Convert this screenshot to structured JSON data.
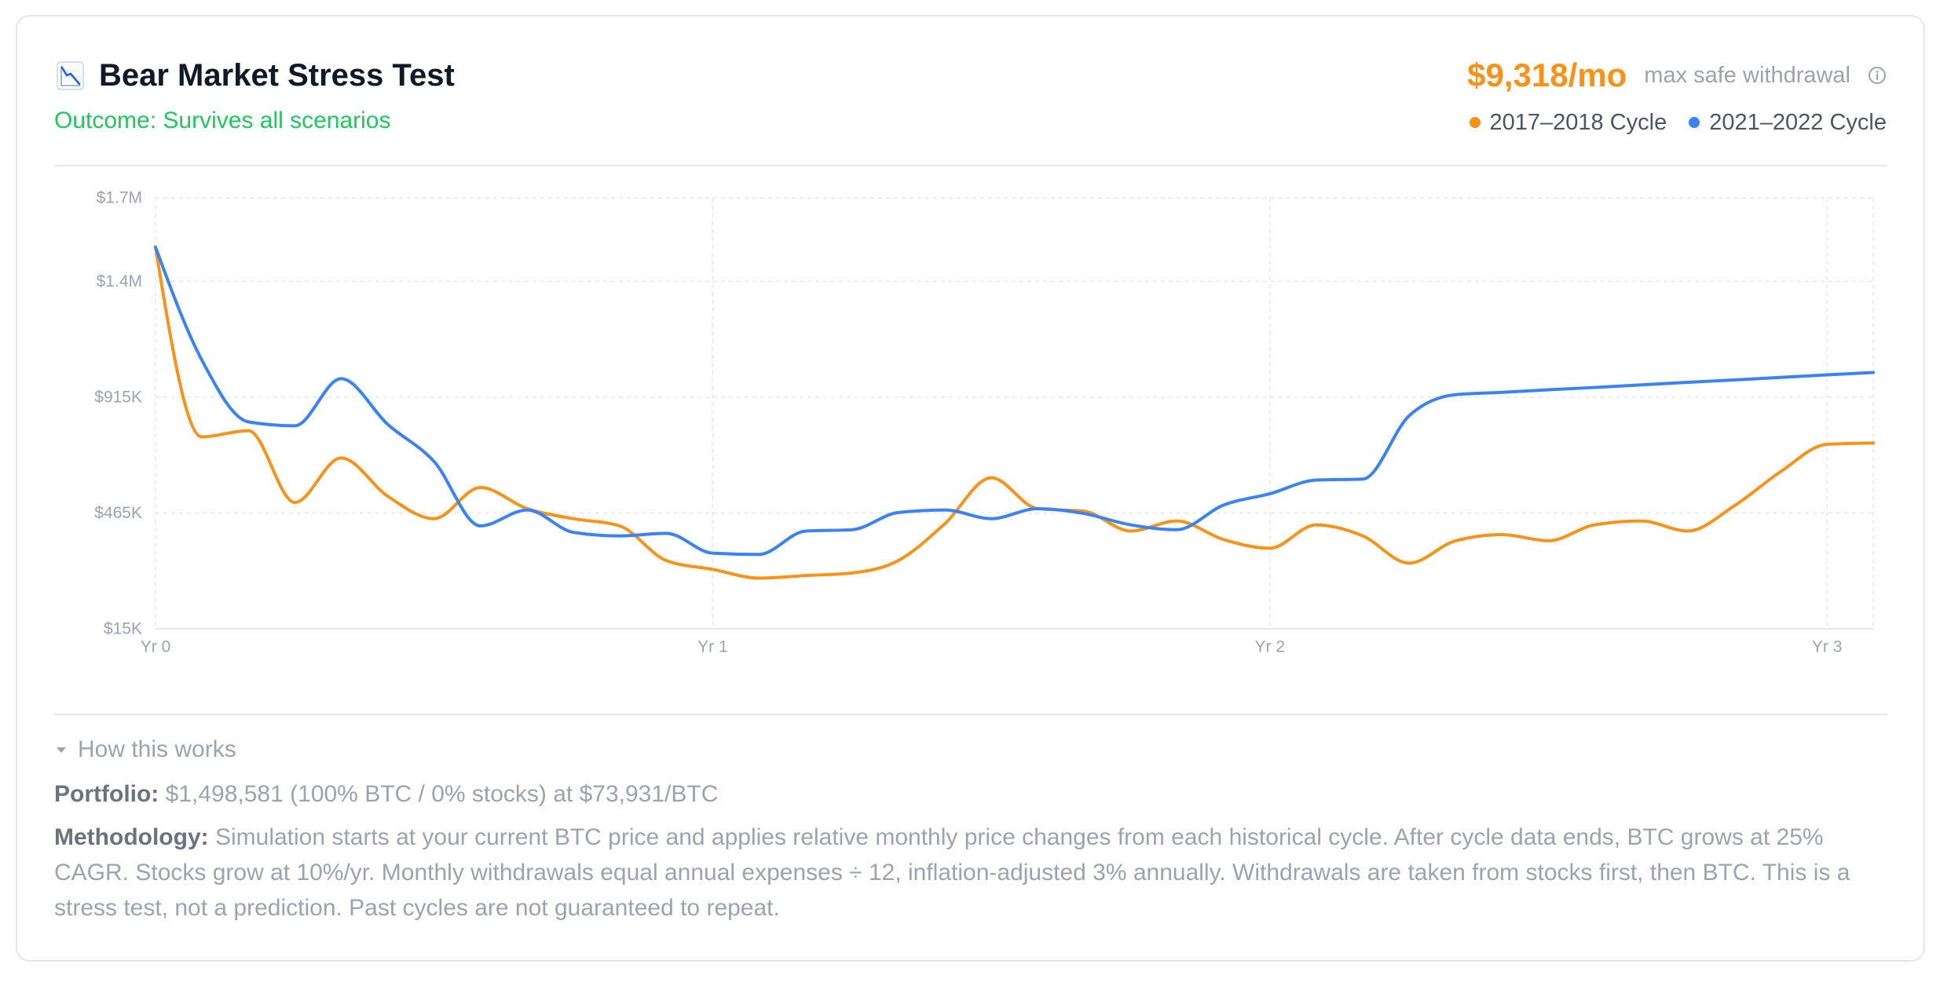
{
  "card": {
    "title": "Bear Market Stress Test",
    "title_icon": "chart-decreasing-icon",
    "outcome": "Outcome: Survives all scenarios"
  },
  "summary": {
    "value": "$9,318/mo",
    "label": "max safe withdrawal",
    "info_icon": "info-icon"
  },
  "colors": {
    "accent": "#f7931a",
    "positive": "#22c55e",
    "grid": "#e5e7eb"
  },
  "details": {
    "toggle_icon": "caret-down-icon",
    "toggle_label": "How this works",
    "portfolio_label": "Portfolio:",
    "portfolio_text": "$1,498,581 (100% BTC / 0% stocks) at $73,931/BTC",
    "methodology_label": "Methodology:",
    "methodology_text": "Simulation starts at your current BTC price and applies relative monthly price changes from each historical cycle. After cycle data ends, BTC grows at 25% CAGR. Stocks grow at 10%/yr. Monthly withdrawals equal annual expenses ÷ 12, inflation-adjusted 3% annually. Withdrawals are taken from stocks first, then BTC. This is a stress test, not a prediction. Past cycles are not guaranteed to repeat."
  },
  "chart_data": {
    "type": "line",
    "grid": true,
    "legend_position": "top-right",
    "x": [
      0,
      0.083,
      0.167,
      0.25,
      0.333,
      0.417,
      0.5,
      0.583,
      0.667,
      0.75,
      0.833,
      0.917,
      1,
      1.083,
      1.167,
      1.25,
      1.333,
      1.417,
      1.5,
      1.583,
      1.667,
      1.75,
      1.833,
      1.917,
      2,
      2.083,
      2.167,
      2.25,
      2.333,
      2.417,
      2.5,
      2.583,
      2.667,
      2.75,
      2.833,
      2.917,
      3,
      3.083
    ],
    "xlim": [
      0,
      3.083
    ],
    "x_ticks": [
      {
        "value": 0,
        "label": "Yr 0"
      },
      {
        "value": 1,
        "label": "Yr 1"
      },
      {
        "value": 2,
        "label": "Yr 2"
      },
      {
        "value": 3,
        "label": "Yr 3"
      }
    ],
    "ylim": [
      15000,
      1690000
    ],
    "y_ticks": [
      {
        "value": 15000,
        "label": "$15K"
      },
      {
        "value": 465000,
        "label": "$465K"
      },
      {
        "value": 915000,
        "label": "$915K"
      },
      {
        "value": 1365000,
        "label": "$1.4M"
      },
      {
        "value": 1690000,
        "label": "$1.7M"
      }
    ],
    "series": [
      {
        "name": "2017–2018 Cycle",
        "color": "#f7931a",
        "values": [
          1498581,
          761000,
          785000,
          506000,
          679000,
          530000,
          443000,
          564000,
          482000,
          443000,
          415000,
          280000,
          246000,
          212000,
          222000,
          232000,
          280000,
          424000,
          602000,
          482000,
          472000,
          395000,
          434000,
          362000,
          328000,
          419000,
          376000,
          270000,
          357000,
          381000,
          357000,
          419000,
          434000,
          395000,
          492000,
          626000,
          732000,
          737000
        ]
      },
      {
        "name": "2021–2022 Cycle",
        "color": "#3b82f6",
        "values": [
          1498581,
          1060000,
          819000,
          804000,
          987000,
          809000,
          665000,
          415000,
          477000,
          390000,
          376000,
          386000,
          309000,
          304000,
          395000,
          400000,
          467000,
          477000,
          443000,
          482000,
          463000,
          419000,
          400000,
          496000,
          540000,
          593000,
          597000,
          843000,
          925000,
          934000,
          944000,
          953000,
          963000,
          973000,
          982000,
          992000,
          1002000,
          1011000
        ]
      }
    ]
  }
}
